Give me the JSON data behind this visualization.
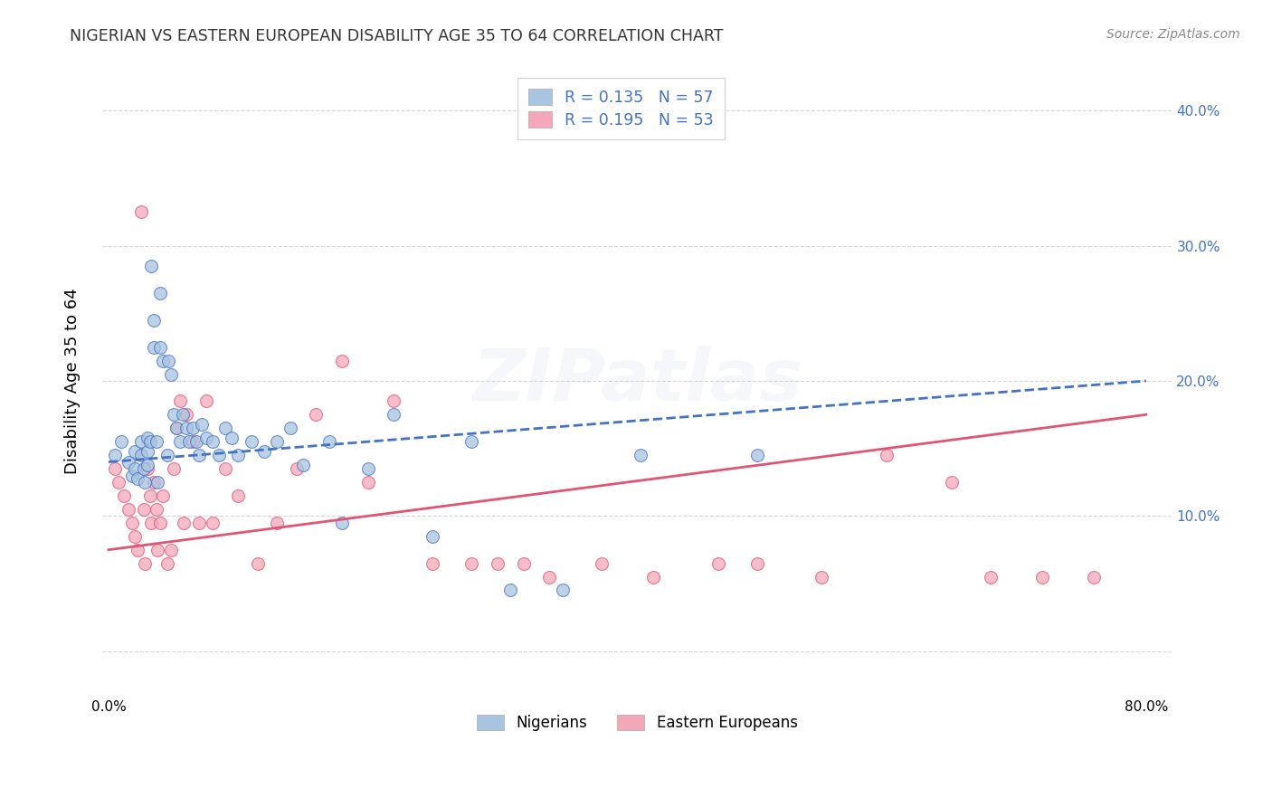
{
  "title": "NIGERIAN VS EASTERN EUROPEAN DISABILITY AGE 35 TO 64 CORRELATION CHART",
  "source": "Source: ZipAtlas.com",
  "xlabel_ticks": [
    "0.0%",
    "",
    "",
    "",
    "80.0%"
  ],
  "xlabel_tick_vals": [
    0.0,
    0.2,
    0.4,
    0.6,
    0.8
  ],
  "ylabel": "Disability Age 35 to 64",
  "ylabel_right_ticks": [
    "",
    "10.0%",
    "20.0%",
    "30.0%",
    "40.0%"
  ],
  "ylabel_right_tick_vals": [
    0.0,
    0.1,
    0.2,
    0.3,
    0.4
  ],
  "xlim": [
    -0.005,
    0.82
  ],
  "ylim": [
    -0.03,
    0.43
  ],
  "legend_entries": [
    {
      "label": "R = 0.135   N = 57",
      "color": "#a8c4e0"
    },
    {
      "label": "R = 0.195   N = 53",
      "color": "#f4a7b9"
    }
  ],
  "legend_bottom": [
    {
      "label": "Nigerians",
      "color": "#a8c4e0"
    },
    {
      "label": "Eastern Europeans",
      "color": "#f4a7b9"
    }
  ],
  "nigerians_x": [
    0.005,
    0.01,
    0.015,
    0.018,
    0.02,
    0.02,
    0.022,
    0.025,
    0.025,
    0.027,
    0.028,
    0.03,
    0.03,
    0.03,
    0.032,
    0.033,
    0.035,
    0.035,
    0.037,
    0.038,
    0.04,
    0.04,
    0.042,
    0.045,
    0.046,
    0.048,
    0.05,
    0.052,
    0.055,
    0.057,
    0.06,
    0.062,
    0.065,
    0.068,
    0.07,
    0.072,
    0.075,
    0.08,
    0.085,
    0.09,
    0.095,
    0.1,
    0.11,
    0.12,
    0.13,
    0.14,
    0.15,
    0.17,
    0.18,
    0.2,
    0.22,
    0.25,
    0.28,
    0.31,
    0.35,
    0.41,
    0.5
  ],
  "nigerians_y": [
    0.145,
    0.155,
    0.14,
    0.13,
    0.148,
    0.135,
    0.128,
    0.155,
    0.145,
    0.135,
    0.125,
    0.158,
    0.148,
    0.138,
    0.155,
    0.285,
    0.245,
    0.225,
    0.155,
    0.125,
    0.265,
    0.225,
    0.215,
    0.145,
    0.215,
    0.205,
    0.175,
    0.165,
    0.155,
    0.175,
    0.165,
    0.155,
    0.165,
    0.155,
    0.145,
    0.168,
    0.158,
    0.155,
    0.145,
    0.165,
    0.158,
    0.145,
    0.155,
    0.148,
    0.155,
    0.165,
    0.138,
    0.155,
    0.095,
    0.135,
    0.175,
    0.085,
    0.155,
    0.045,
    0.045,
    0.145,
    0.145
  ],
  "eastern_x": [
    0.005,
    0.008,
    0.012,
    0.015,
    0.018,
    0.02,
    0.022,
    0.025,
    0.027,
    0.028,
    0.03,
    0.032,
    0.033,
    0.035,
    0.037,
    0.038,
    0.04,
    0.042,
    0.045,
    0.048,
    0.05,
    0.052,
    0.055,
    0.058,
    0.06,
    0.065,
    0.07,
    0.075,
    0.08,
    0.09,
    0.1,
    0.115,
    0.13,
    0.145,
    0.16,
    0.18,
    0.2,
    0.22,
    0.25,
    0.28,
    0.3,
    0.32,
    0.34,
    0.38,
    0.42,
    0.47,
    0.5,
    0.55,
    0.6,
    0.65,
    0.68,
    0.72,
    0.76
  ],
  "eastern_y": [
    0.135,
    0.125,
    0.115,
    0.105,
    0.095,
    0.085,
    0.075,
    0.325,
    0.105,
    0.065,
    0.135,
    0.115,
    0.095,
    0.125,
    0.105,
    0.075,
    0.095,
    0.115,
    0.065,
    0.075,
    0.135,
    0.165,
    0.185,
    0.095,
    0.175,
    0.155,
    0.095,
    0.185,
    0.095,
    0.135,
    0.115,
    0.065,
    0.095,
    0.135,
    0.175,
    0.215,
    0.125,
    0.185,
    0.065,
    0.065,
    0.065,
    0.065,
    0.055,
    0.065,
    0.055,
    0.065,
    0.065,
    0.055,
    0.145,
    0.125,
    0.055,
    0.055,
    0.055
  ],
  "nigerian_line_x": [
    0.0,
    0.8
  ],
  "nigerian_line_y": [
    0.14,
    0.2
  ],
  "eastern_line_x": [
    0.0,
    0.8
  ],
  "eastern_line_y": [
    0.075,
    0.175
  ],
  "nigerian_line_color": "#4472c4",
  "eastern_line_color": "#e05575",
  "nigerian_scatter_color": "#a8c4e0",
  "eastern_scatter_color": "#f4a7b9",
  "scatter_alpha": 0.75,
  "scatter_size": 100,
  "background_color": "#ffffff",
  "grid_color": "#d0d0d0",
  "title_color": "#333333",
  "right_axis_color": "#4472c4",
  "watermark_text": "ZIPatlas",
  "watermark_alpha": 0.18
}
